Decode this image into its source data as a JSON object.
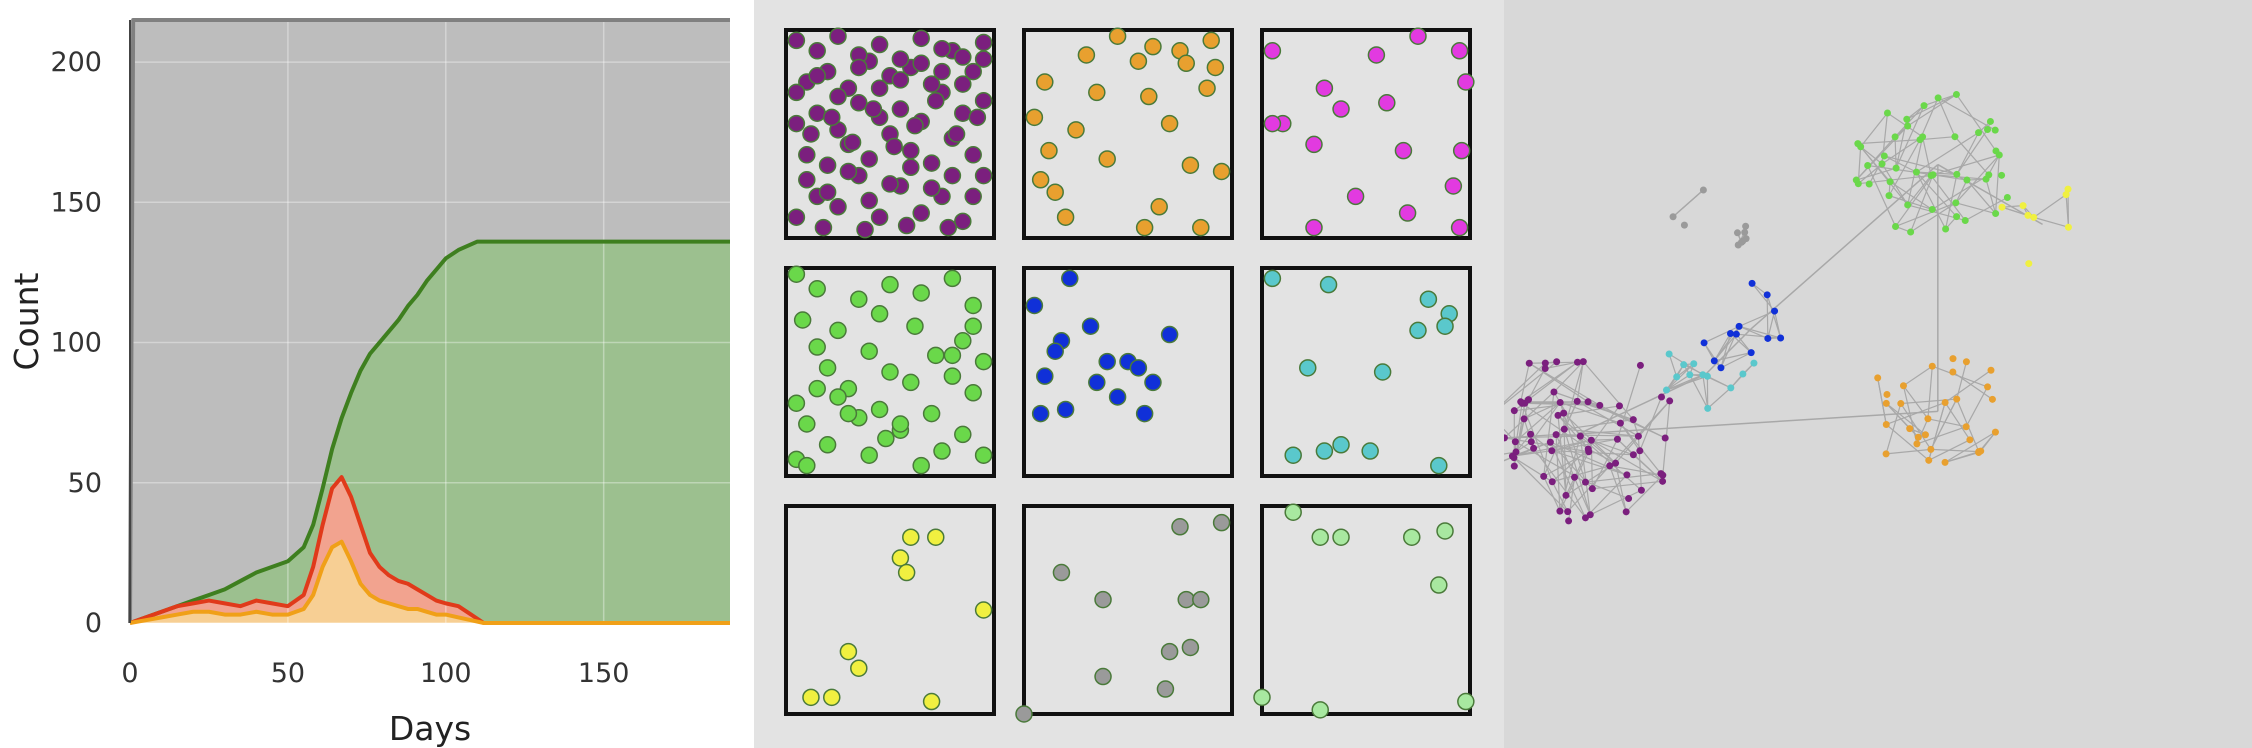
{
  "chart_data": [
    {
      "type": "area",
      "xlabel": "Days",
      "ylabel": "Count",
      "xlim": [
        0,
        190
      ],
      "ylim": [
        0,
        215
      ],
      "x_ticks": [
        0,
        50,
        100,
        150
      ],
      "y_ticks": [
        0,
        50,
        100,
        150,
        200
      ],
      "grid": true,
      "series": [
        {
          "color": "#bdbdbd",
          "line_color": "#808080",
          "x": [
            0,
            1,
            190
          ],
          "y": [
            0,
            215,
            215
          ]
        },
        {
          "color": "#9cc08f",
          "line_color": "#3e7f1f",
          "x": [
            0,
            5,
            10,
            15,
            20,
            25,
            30,
            35,
            40,
            45,
            50,
            55,
            58,
            61,
            64,
            67,
            70,
            73,
            76,
            79,
            82,
            85,
            88,
            91,
            94,
            97,
            100,
            104,
            110,
            120,
            150,
            190
          ],
          "y": [
            0,
            2,
            4,
            6,
            8,
            10,
            12,
            15,
            18,
            20,
            22,
            27,
            35,
            48,
            62,
            73,
            82,
            90,
            96,
            100,
            104,
            108,
            113,
            117,
            122,
            126,
            130,
            133,
            136,
            136,
            136,
            136
          ]
        },
        {
          "color": "#f2a38f",
          "line_color": "#e03a1a",
          "x": [
            0,
            5,
            10,
            15,
            20,
            25,
            30,
            35,
            40,
            45,
            50,
            55,
            58,
            61,
            64,
            67,
            70,
            73,
            76,
            79,
            82,
            85,
            88,
            91,
            94,
            97,
            100,
            104,
            108,
            112,
            120,
            150,
            190
          ],
          "y": [
            0,
            2,
            4,
            6,
            7,
            8,
            7,
            6,
            8,
            7,
            6,
            10,
            20,
            35,
            48,
            52,
            45,
            35,
            25,
            20,
            17,
            15,
            14,
            12,
            10,
            8,
            7,
            6,
            3,
            0,
            0,
            0,
            0
          ]
        },
        {
          "color": "#f7cf94",
          "line_color": "#f0a018",
          "x": [
            0,
            5,
            10,
            15,
            20,
            25,
            30,
            35,
            40,
            45,
            50,
            55,
            58,
            61,
            64,
            67,
            70,
            73,
            76,
            79,
            82,
            85,
            88,
            91,
            94,
            97,
            100,
            104,
            108,
            112,
            120,
            150,
            190
          ],
          "y": [
            0,
            1,
            2,
            3,
            4,
            4,
            3,
            3,
            4,
            3,
            3,
            5,
            10,
            20,
            27,
            29,
            22,
            14,
            10,
            8,
            7,
            6,
            5,
            5,
            4,
            3,
            3,
            2,
            1,
            0,
            0,
            0,
            0
          ]
        }
      ]
    },
    {
      "type": "scatter",
      "layout": "3x3 panel grid",
      "xlim": [
        0,
        1
      ],
      "ylim": [
        0,
        1
      ],
      "panels": [
        {
          "color": "#7b1f7e",
          "x": [
            0.05,
            0.15,
            0.25,
            0.35,
            0.45,
            0.55,
            0.65,
            0.75,
            0.85,
            0.95,
            0.1,
            0.2,
            0.3,
            0.4,
            0.5,
            0.6,
            0.7,
            0.8,
            0.9,
            0.05,
            0.15,
            0.25,
            0.35,
            0.45,
            0.55,
            0.65,
            0.75,
            0.85,
            0.95,
            0.1,
            0.2,
            0.3,
            0.4,
            0.5,
            0.6,
            0.7,
            0.8,
            0.9,
            0.05,
            0.15,
            0.25,
            0.35,
            0.45,
            0.55,
            0.65,
            0.75,
            0.85,
            0.95,
            0.1,
            0.2,
            0.3,
            0.4,
            0.5,
            0.6,
            0.7,
            0.8,
            0.9,
            0.12,
            0.22,
            0.32,
            0.42,
            0.52,
            0.62,
            0.72,
            0.82,
            0.92,
            0.05,
            0.15,
            0.25,
            0.35,
            0.45,
            0.55,
            0.65,
            0.75,
            0.85,
            0.95,
            0.18,
            0.38,
            0.58,
            0.78
          ],
          "y": [
            0.1,
            0.2,
            0.15,
            0.3,
            0.1,
            0.25,
            0.12,
            0.2,
            0.08,
            0.3,
            0.4,
            0.35,
            0.45,
            0.38,
            0.5,
            0.42,
            0.36,
            0.48,
            0.4,
            0.55,
            0.6,
            0.52,
            0.65,
            0.58,
            0.62,
            0.56,
            0.7,
            0.6,
            0.66,
            0.75,
            0.8,
            0.72,
            0.85,
            0.78,
            0.82,
            0.74,
            0.9,
            0.8,
            0.95,
            0.9,
            0.97,
            0.88,
            0.93,
            0.86,
            0.96,
            0.91,
            0.87,
            0.94,
            0.28,
            0.22,
            0.32,
            0.18,
            0.26,
            0.34,
            0.24,
            0.3,
            0.2,
            0.5,
            0.58,
            0.46,
            0.62,
            0.44,
            0.54,
            0.66,
            0.5,
            0.58,
            0.7,
            0.78,
            0.68,
            0.82,
            0.72,
            0.76,
            0.84,
            0.8,
            0.74,
            0.86,
            0.05,
            0.04,
            0.06,
            0.05
          ]
        },
        {
          "color": "#e8a02f",
          "x": [
            0.45,
            0.62,
            0.75,
            0.9,
            0.3,
            0.55,
            0.78,
            0.92,
            0.1,
            0.35,
            0.6,
            0.88,
            0.05,
            0.25,
            0.7,
            0.12,
            0.4,
            0.8,
            0.08,
            0.95,
            0.2,
            0.65,
            0.15,
            0.58,
            0.85
          ],
          "y": [
            0.97,
            0.92,
            0.9,
            0.95,
            0.88,
            0.85,
            0.84,
            0.82,
            0.75,
            0.7,
            0.68,
            0.72,
            0.58,
            0.52,
            0.55,
            0.42,
            0.38,
            0.35,
            0.28,
            0.32,
            0.1,
            0.15,
            0.22,
            0.05,
            0.05
          ]
        },
        {
          "color": "#e23ae0",
          "x": [
            0.05,
            0.75,
            0.95,
            0.3,
            0.55,
            0.1,
            0.38,
            0.6,
            0.98,
            0.05,
            0.25,
            0.68,
            0.96,
            0.45,
            0.92,
            0.7,
            0.25,
            0.95
          ],
          "y": [
            0.9,
            0.97,
            0.9,
            0.72,
            0.88,
            0.55,
            0.62,
            0.65,
            0.75,
            0.55,
            0.45,
            0.42,
            0.42,
            0.2,
            0.25,
            0.12,
            0.05,
            0.05
          ]
        },
        {
          "color": "#6ad84a",
          "x": [
            0.05,
            0.15,
            0.5,
            0.8,
            0.35,
            0.65,
            0.9,
            0.08,
            0.25,
            0.45,
            0.62,
            0.85,
            0.15,
            0.4,
            0.72,
            0.95,
            0.2,
            0.5,
            0.8,
            0.3,
            0.6,
            0.9,
            0.05,
            0.25,
            0.45,
            0.7,
            0.1,
            0.35,
            0.55,
            0.85,
            0.2,
            0.48,
            0.75,
            0.05,
            0.4,
            0.65,
            0.95,
            0.15,
            0.3,
            0.55,
            0.8,
            0.9,
            0.1
          ],
          "y": [
            0.97,
            0.9,
            0.92,
            0.95,
            0.85,
            0.88,
            0.82,
            0.75,
            0.7,
            0.78,
            0.72,
            0.65,
            0.62,
            0.6,
            0.58,
            0.55,
            0.52,
            0.5,
            0.48,
            0.42,
            0.45,
            0.4,
            0.35,
            0.38,
            0.32,
            0.3,
            0.25,
            0.28,
            0.22,
            0.2,
            0.15,
            0.18,
            0.12,
            0.08,
            0.1,
            0.05,
            0.1,
            0.42,
            0.3,
            0.25,
            0.58,
            0.72,
            0.05
          ]
        },
        {
          "color": "#1030d8",
          "x": [
            0.05,
            0.18,
            0.32,
            0.5,
            0.1,
            0.35,
            0.55,
            0.2,
            0.45,
            0.7,
            0.15,
            0.4,
            0.62,
            0.08,
            0.58,
            0.22
          ],
          "y": [
            0.82,
            0.65,
            0.72,
            0.55,
            0.48,
            0.45,
            0.52,
            0.32,
            0.38,
            0.68,
            0.6,
            0.55,
            0.45,
            0.3,
            0.3,
            0.95
          ]
        },
        {
          "color": "#5ac8cc",
          "x": [
            0.05,
            0.32,
            0.8,
            0.9,
            0.75,
            0.88,
            0.22,
            0.58,
            0.15,
            0.3,
            0.52,
            0.85,
            0.38
          ],
          "y": [
            0.95,
            0.92,
            0.85,
            0.78,
            0.7,
            0.72,
            0.52,
            0.5,
            0.1,
            0.12,
            0.12,
            0.05,
            0.15
          ]
        },
        {
          "color": "#f0f040",
          "x": [
            0.6,
            0.72,
            0.55,
            0.58,
            0.3,
            0.35,
            0.95,
            0.12,
            0.22,
            0.7
          ],
          "y": [
            0.85,
            0.85,
            0.75,
            0.68,
            0.3,
            0.22,
            0.5,
            0.08,
            0.08,
            0.06
          ]
        },
        {
          "color": "#9a9a9a",
          "x": [
            0.75,
            0.95,
            0.18,
            0.38,
            0.78,
            0.85,
            0.7,
            0.8,
            0.38,
            0.68,
            0.0
          ],
          "y": [
            0.9,
            0.92,
            0.68,
            0.55,
            0.55,
            0.55,
            0.3,
            0.32,
            0.18,
            0.12,
            0.0
          ]
        },
        {
          "color": "#a8e8a0",
          "x": [
            0.15,
            0.28,
            0.38,
            0.72,
            0.88,
            0.85,
            0.0,
            0.28,
            0.98
          ],
          "y": [
            0.97,
            0.85,
            0.85,
            0.85,
            0.88,
            0.62,
            0.08,
            0.02,
            0.06
          ]
        }
      ]
    },
    {
      "type": "network",
      "layout": "force-directed clusters",
      "clusters": [
        {
          "color": "#7b1f7e",
          "nodes": 70,
          "cx": 0.1,
          "cy": 0.58
        },
        {
          "color": "#6ad84a",
          "nodes": 45,
          "cx": 0.58,
          "cy": 0.22
        },
        {
          "color": "#e8a02f",
          "nodes": 30,
          "cx": 0.58,
          "cy": 0.55
        },
        {
          "color": "#1030d8",
          "nodes": 12,
          "cx": 0.33,
          "cy": 0.44
        },
        {
          "color": "#5ac8cc",
          "nodes": 12,
          "cx": 0.27,
          "cy": 0.5
        },
        {
          "color": "#f0f040",
          "nodes": 8,
          "cx": 0.72,
          "cy": 0.3
        },
        {
          "color": "#9a9a9a",
          "nodes": 10,
          "cx": 0.29,
          "cy": 0.3
        }
      ]
    }
  ]
}
